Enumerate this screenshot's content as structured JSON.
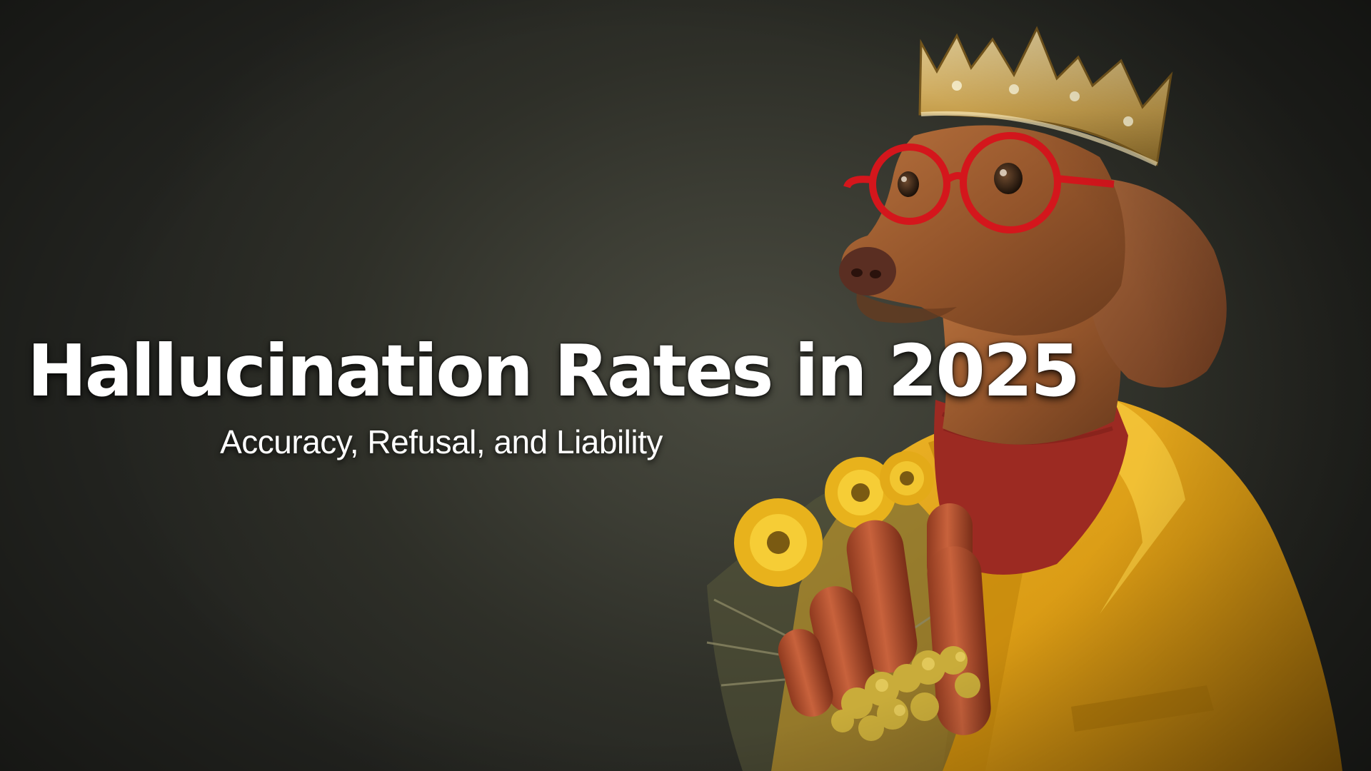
{
  "title": "Hallucination Rates in 2025",
  "subtitle": "Accuracy, Refusal, and Liability",
  "image": {
    "subject": "dachshund-portrait",
    "icons": [
      "crown-icon",
      "glasses-icon",
      "sausage-icon",
      "flower-icon"
    ]
  },
  "colors": {
    "background": "#3a3b33",
    "coat": "#e0a318",
    "sweater": "#9c2a22",
    "glasses": "#d4161c",
    "crown": "#c9a24a",
    "fur": "#9a5a2e",
    "text": "#ffffff"
  }
}
